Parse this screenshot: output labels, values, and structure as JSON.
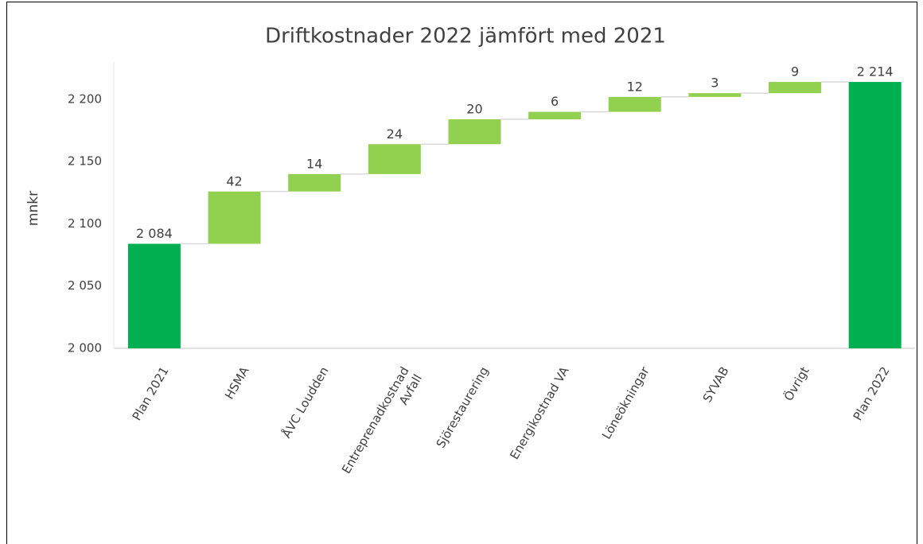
{
  "chart_data": {
    "type": "waterfall",
    "title": "Driftkostnader 2022 jämfört med 2021",
    "y_label": "mnkr",
    "categories": [
      "Plan 2021",
      "HSMA",
      "ÅVC Loudden",
      "Entreprenadkostnad Avfall",
      "Sjörestaurering",
      "Energikostnad VA",
      "Löneökningar",
      "SYVAB",
      "Övrigt",
      "Plan 2022"
    ],
    "values": [
      2084,
      42,
      14,
      24,
      20,
      6,
      12,
      3,
      9,
      2214
    ],
    "value_labels": [
      "2 084",
      "42",
      "14",
      "24",
      "20",
      "6",
      "12",
      "3",
      "9",
      "2 214"
    ],
    "total_color": "#00b050",
    "increase_color": "#92d050",
    "ylim": [
      2000,
      2230
    ],
    "yticks": [
      {
        "value": 2000,
        "label": "2 000"
      },
      {
        "value": 2050,
        "label": "2 050"
      },
      {
        "value": 2100,
        "label": "2 100"
      },
      {
        "value": 2150,
        "label": "2 150"
      },
      {
        "value": 2200,
        "label": "2 200"
      }
    ],
    "grid": false
  }
}
